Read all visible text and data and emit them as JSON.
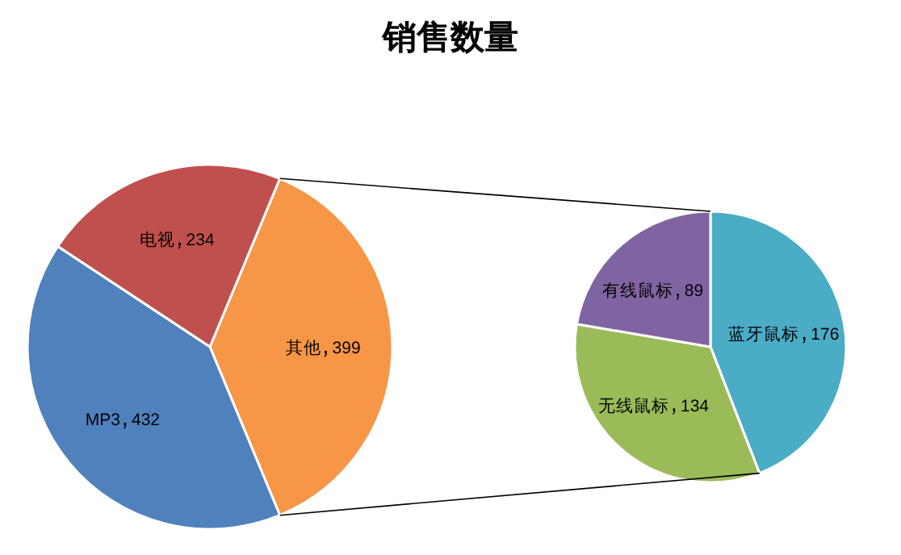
{
  "chart_data": [
    {
      "type": "pie",
      "title": "销售数量",
      "categories": [
        "其他",
        "电视",
        "MP3"
      ],
      "values": [
        399,
        234,
        432
      ],
      "colors": [
        "#f79646",
        "#c0504d",
        "#4f81bd"
      ],
      "data_labels": true
    },
    {
      "type": "pie",
      "categories": [
        "蓝牙鼠标",
        "无线鼠标",
        "有线鼠标"
      ],
      "values": [
        176,
        134,
        89
      ],
      "colors": [
        "#4bacc6",
        "#9bbb59",
        "#8064a2"
      ],
      "data_labels": true
    }
  ]
}
